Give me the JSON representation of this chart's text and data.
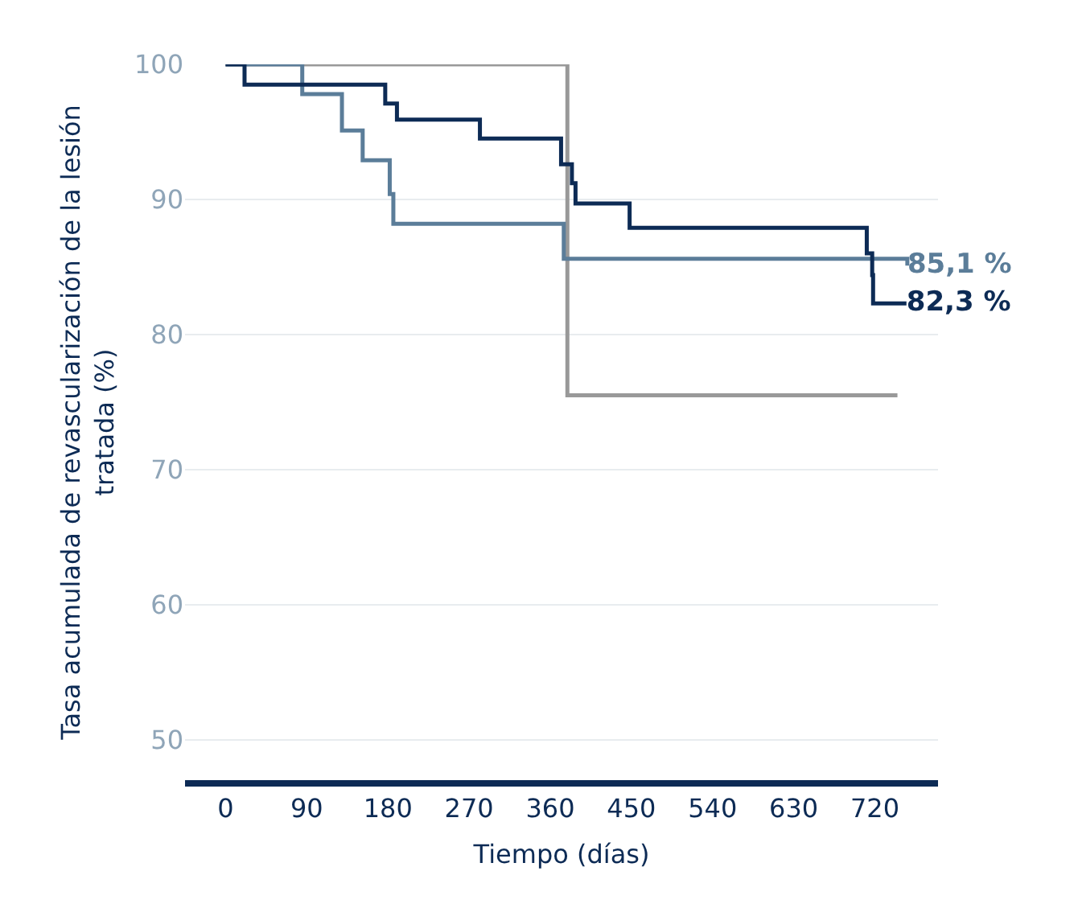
{
  "chart_data": {
    "type": "step",
    "xlabel": "Tiempo (días)",
    "ylabel": "Tasa acumulada de revascularización de la lesión tratada (%)",
    "series": [
      {
        "color": "#999999",
        "x": [
          0,
          379,
          379,
          745
        ],
        "values": [
          100,
          100,
          75.5,
          75.5
        ]
      },
      {
        "color": "#5b7d99",
        "x": [
          0,
          85,
          129,
          152,
          182,
          186,
          375,
          756
        ],
        "values": [
          100,
          97.8,
          95.1,
          92.9,
          90.4,
          88.2,
          85.6,
          85.1
        ],
        "value_labels": [
          null,
          null,
          null,
          null,
          null,
          null,
          null,
          "85,1 %"
        ]
      },
      {
        "color": "#0d2b55",
        "x": [
          0,
          21,
          177,
          190,
          282,
          372,
          384,
          388,
          448,
          711,
          717,
          718,
          755
        ],
        "values": [
          100,
          98.5,
          97.1,
          95.9,
          94.5,
          92.6,
          91.2,
          89.7,
          87.9,
          86.0,
          84.4,
          82.3,
          82.3
        ],
        "value_labels": [
          null,
          null,
          null,
          null,
          null,
          null,
          null,
          null,
          null,
          null,
          null,
          null,
          "82,3 %"
        ]
      }
    ],
    "xlim": [
      -45,
      790
    ],
    "xticks": [
      0,
      90,
      180,
      270,
      360,
      450,
      540,
      630,
      720
    ],
    "ylim": [
      47,
      100
    ],
    "yticks": [
      50,
      60,
      70,
      80,
      90,
      100
    ],
    "grid": "y",
    "marker": "none",
    "line_style": "solid"
  }
}
